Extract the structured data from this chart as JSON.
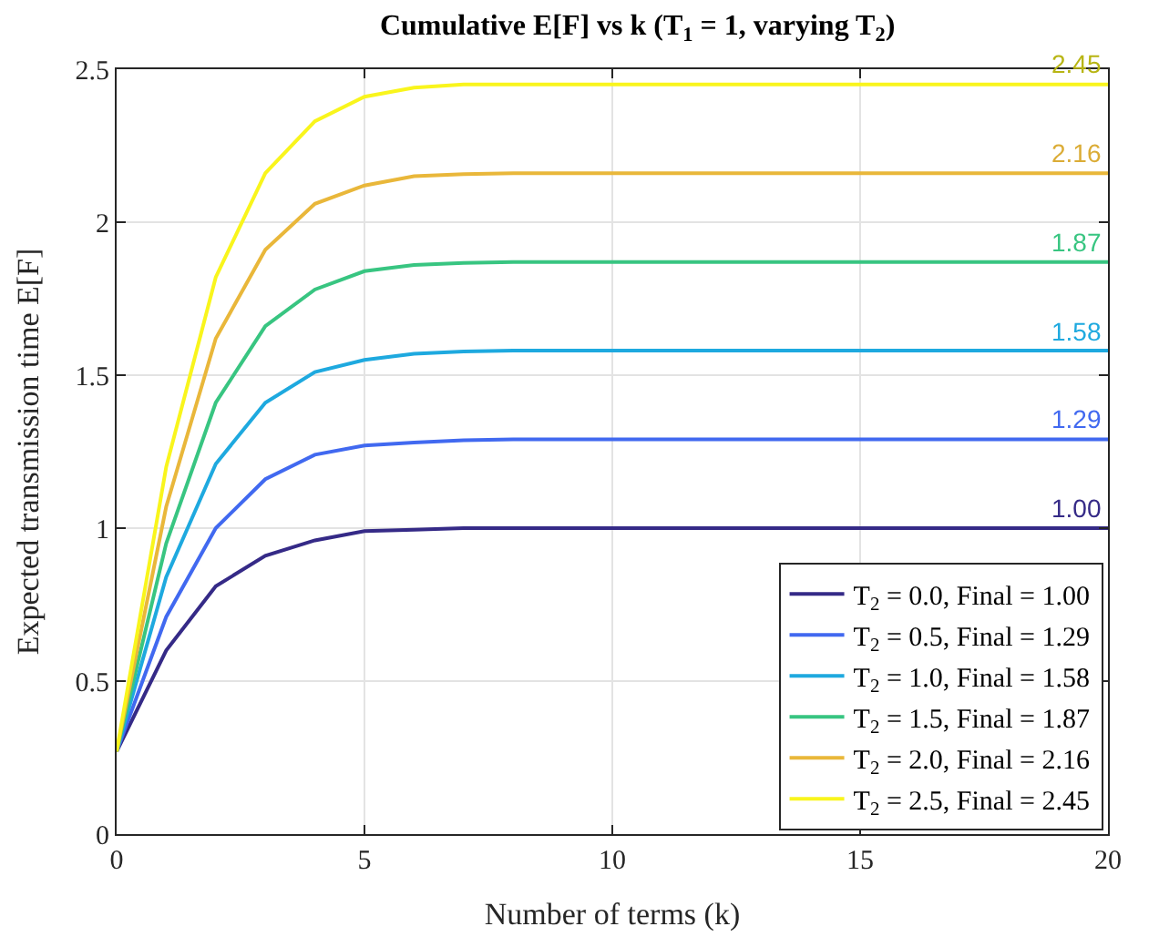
{
  "chart_data": {
    "type": "line",
    "title": "Cumulative E[F] vs k (T$_{1}$ = 1, varying T$_{2}$)",
    "xlabel": "Number of terms (k)",
    "ylabel": "Expected transmission time E[F]",
    "x": [
      0,
      1,
      2,
      3,
      4,
      5,
      6,
      7,
      8,
      9,
      10,
      11,
      12,
      13,
      14,
      15,
      16,
      17,
      18,
      19,
      20
    ],
    "series": [
      {
        "name": "T$_{2}$ = 0.0, Final = 1.00",
        "color": "#352a87",
        "values": [
          0.27,
          0.6,
          0.81,
          0.91,
          0.96,
          0.99,
          0.995,
          1.0,
          1.0,
          1.0,
          1.0,
          1.0,
          1.0,
          1.0,
          1.0,
          1.0,
          1.0,
          1.0,
          1.0,
          1.0,
          1.0
        ]
      },
      {
        "name": "T$_{2}$ = 0.5, Final = 1.29",
        "color": "#4169f0",
        "values": [
          0.27,
          0.71,
          1.0,
          1.16,
          1.24,
          1.27,
          1.28,
          1.287,
          1.29,
          1.29,
          1.29,
          1.29,
          1.29,
          1.29,
          1.29,
          1.29,
          1.29,
          1.29,
          1.29,
          1.29,
          1.29
        ]
      },
      {
        "name": "T$_{2}$ = 1.0, Final = 1.58",
        "color": "#1ea9df",
        "values": [
          0.27,
          0.84,
          1.21,
          1.41,
          1.51,
          1.55,
          1.57,
          1.577,
          1.58,
          1.58,
          1.58,
          1.58,
          1.58,
          1.58,
          1.58,
          1.58,
          1.58,
          1.58,
          1.58,
          1.58,
          1.58
        ]
      },
      {
        "name": "T$_{2}$ = 1.5, Final = 1.87",
        "color": "#38c581",
        "values": [
          0.27,
          0.95,
          1.41,
          1.66,
          1.78,
          1.84,
          1.86,
          1.867,
          1.87,
          1.87,
          1.87,
          1.87,
          1.87,
          1.87,
          1.87,
          1.87,
          1.87,
          1.87,
          1.87,
          1.87,
          1.87
        ]
      },
      {
        "name": "T$_{2}$ = 2.0, Final = 2.16",
        "color": "#e9b73a",
        "values": [
          0.27,
          1.07,
          1.62,
          1.91,
          2.06,
          2.12,
          2.15,
          2.157,
          2.16,
          2.16,
          2.16,
          2.16,
          2.16,
          2.16,
          2.16,
          2.16,
          2.16,
          2.16,
          2.16,
          2.16,
          2.16
        ]
      },
      {
        "name": "T$_{2}$ = 2.5, Final = 2.45",
        "color": "#f9f51c",
        "values": [
          0.27,
          1.2,
          1.82,
          2.16,
          2.33,
          2.41,
          2.44,
          2.45,
          2.45,
          2.45,
          2.45,
          2.45,
          2.45,
          2.45,
          2.45,
          2.45,
          2.45,
          2.45,
          2.45,
          2.45,
          2.45
        ]
      }
    ],
    "annotations": [
      {
        "text": "1.00",
        "y": 1.0
      },
      {
        "text": "1.29",
        "y": 1.29
      },
      {
        "text": "1.58",
        "y": 1.58
      },
      {
        "text": "1.87",
        "y": 1.87
      },
      {
        "text": "2.16",
        "y": 2.16
      },
      {
        "text": "2.45",
        "y": 2.45
      }
    ],
    "xlim": [
      0,
      20
    ],
    "xticks": [
      0,
      5,
      10,
      15,
      20
    ],
    "ylim": [
      0,
      2.5
    ],
    "yticks": [
      0,
      0.5,
      1,
      1.5,
      2,
      2.5
    ],
    "grid": true,
    "legend": "bottom right",
    "marker": "none",
    "line_style": "solid"
  }
}
